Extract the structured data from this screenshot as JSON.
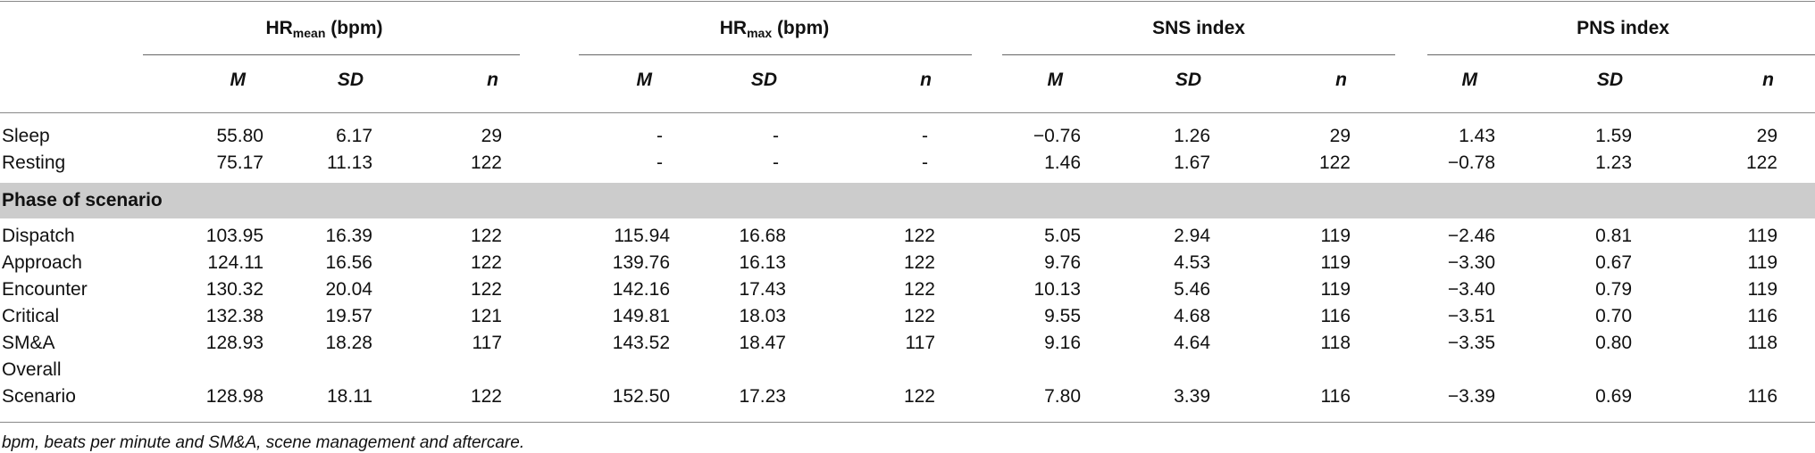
{
  "table": {
    "groups": [
      {
        "label_main": "HR",
        "label_sub": "mean",
        "label_unit": " (bpm)"
      },
      {
        "label_main": "HR",
        "label_sub": "max",
        "label_unit": " (bpm)"
      },
      {
        "label_main": "SNS index",
        "label_sub": "",
        "label_unit": ""
      },
      {
        "label_main": "PNS index",
        "label_sub": "",
        "label_unit": ""
      }
    ],
    "stat_headers": [
      "M",
      "SD",
      "n"
    ],
    "baseline_rows": [
      {
        "label": "Sleep",
        "cells": [
          "55.80",
          "6.17",
          "29",
          "-",
          "-",
          "-",
          "−0.76",
          "1.26",
          "29",
          "1.43",
          "1.59",
          "29"
        ]
      },
      {
        "label": "Resting",
        "cells": [
          "75.17",
          "11.13",
          "122",
          "-",
          "-",
          "-",
          "1.46",
          "1.67",
          "122",
          "−0.78",
          "1.23",
          "122"
        ]
      }
    ],
    "section_label": "Phase of scenario",
    "phase_rows": [
      {
        "label": "Dispatch",
        "cells": [
          "103.95",
          "16.39",
          "122",
          "115.94",
          "16.68",
          "122",
          "5.05",
          "2.94",
          "119",
          "−2.46",
          "0.81",
          "119"
        ]
      },
      {
        "label": "Approach",
        "cells": [
          "124.11",
          "16.56",
          "122",
          "139.76",
          "16.13",
          "122",
          "9.76",
          "4.53",
          "119",
          "−3.30",
          "0.67",
          "119"
        ]
      },
      {
        "label": "Encounter",
        "cells": [
          "130.32",
          "20.04",
          "122",
          "142.16",
          "17.43",
          "122",
          "10.13",
          "5.46",
          "119",
          "−3.40",
          "0.79",
          "119"
        ]
      },
      {
        "label": "Critical",
        "cells": [
          "132.38",
          "19.57",
          "121",
          "149.81",
          "18.03",
          "122",
          "9.55",
          "4.68",
          "116",
          "−3.51",
          "0.70",
          "116"
        ]
      },
      {
        "label": "SM&A",
        "cells": [
          "128.93",
          "18.28",
          "117",
          "143.52",
          "18.47",
          "117",
          "9.16",
          "4.64",
          "118",
          "−3.35",
          "0.80",
          "118"
        ]
      }
    ],
    "overall_row": {
      "label_line1": "Overall",
      "label_line2": "Scenario",
      "cells": [
        "128.98",
        "18.11",
        "122",
        "152.50",
        "17.23",
        "122",
        "7.80",
        "3.39",
        "116",
        "−3.39",
        "0.69",
        "116"
      ]
    },
    "footnote": "bpm, beats per minute and SM&A, scene management and aftercare."
  }
}
